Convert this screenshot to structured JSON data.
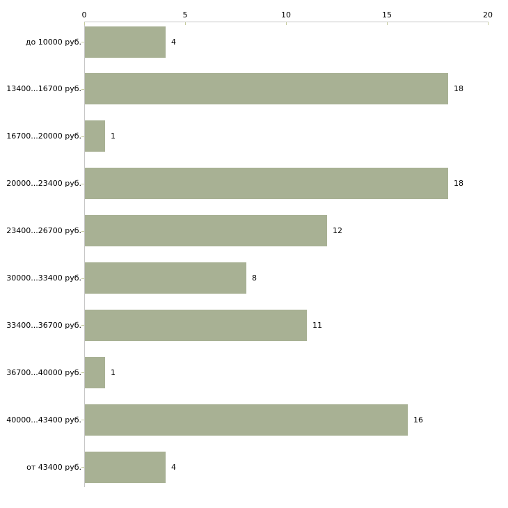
{
  "chart_data": {
    "type": "bar",
    "orientation": "horizontal",
    "title": "",
    "xlabel": "",
    "ylabel": "",
    "categories": [
      "до 10000 руб.",
      "13400...16700 руб.",
      "16700...20000 руб.",
      "20000...23400 руб.",
      "23400...26700 руб.",
      "30000...33400 руб.",
      "33400...36700 руб.",
      "36700...40000 руб.",
      "40000...43400 руб.",
      "от 43400 руб."
    ],
    "values": [
      4,
      18,
      1,
      18,
      12,
      8,
      11,
      1,
      16,
      4
    ],
    "x_ticks": [
      0,
      5,
      10,
      15,
      20
    ],
    "xlim": [
      0,
      20
    ],
    "grid": false,
    "legend": "none",
    "colors": {
      "bar": "#a8b194",
      "axis_line": "#c6c6c6",
      "tick_mark": "#c5cb9d",
      "text": "#000000",
      "background": "#ffffff"
    }
  }
}
